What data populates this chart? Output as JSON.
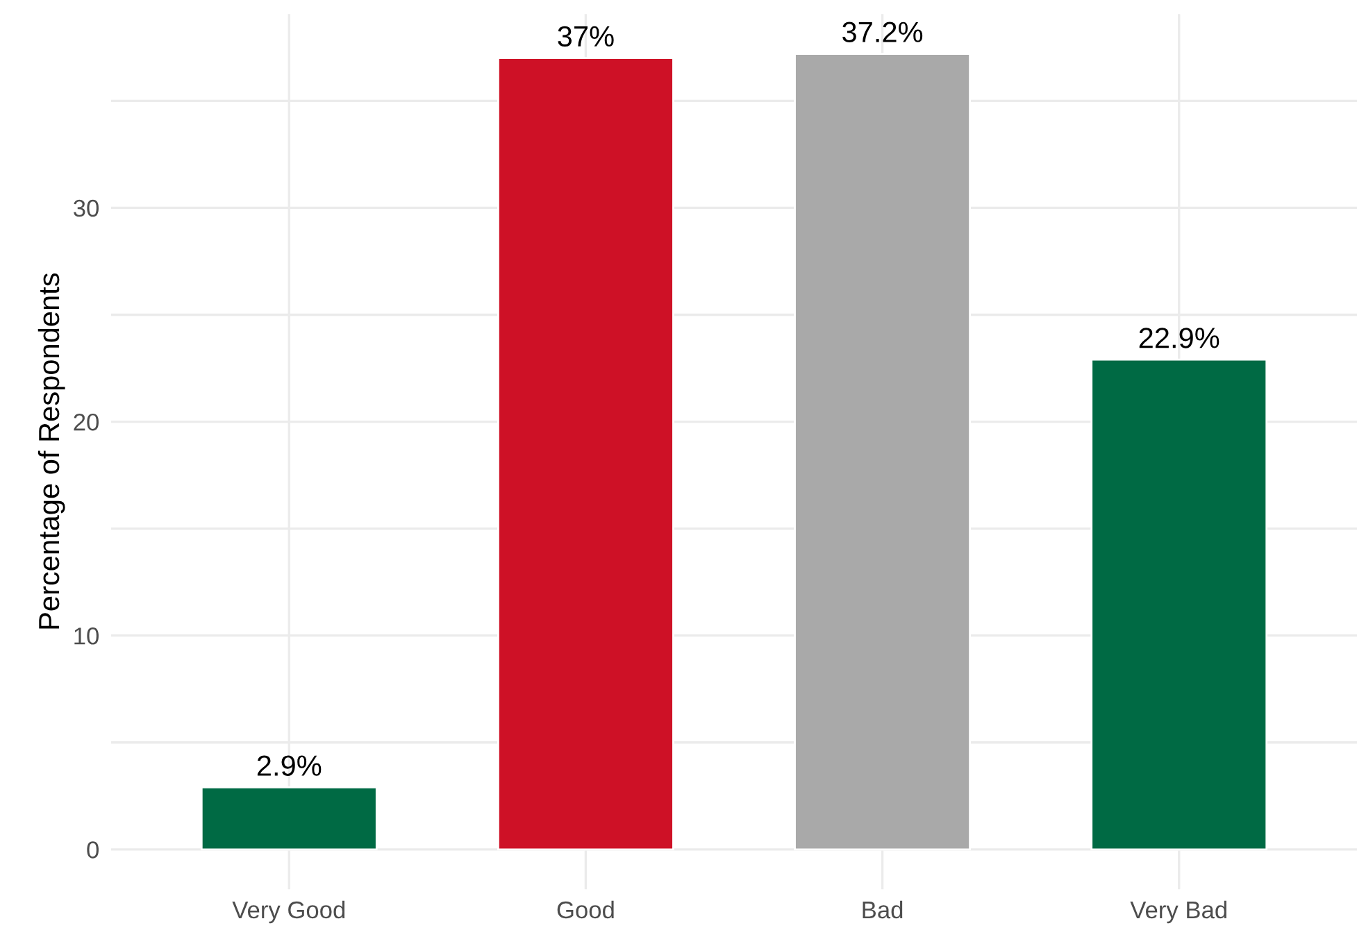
{
  "chart_data": {
    "type": "bar",
    "ylabel": "Percentage of Respondents",
    "categories": [
      "Very Good",
      "Good",
      "Bad",
      "Very Bad"
    ],
    "values": [
      2.9,
      37,
      37.2,
      22.9
    ],
    "value_labels": [
      "2.9%",
      "37%",
      "37.2%",
      "22.9%"
    ],
    "colors": [
      "#006a44",
      "#ce1126",
      "#a9a9a9",
      "#006a44"
    ],
    "ylim": [
      -1.86,
      39.06
    ],
    "yticks": [
      0,
      {
        "value": 5,
        "label": null
      },
      10,
      {
        "value": 15,
        "label": null
      },
      20,
      {
        "value": 25,
        "label": null
      },
      30,
      {
        "value": 35,
        "label": null
      }
    ],
    "grid": true,
    "legend": false
  }
}
